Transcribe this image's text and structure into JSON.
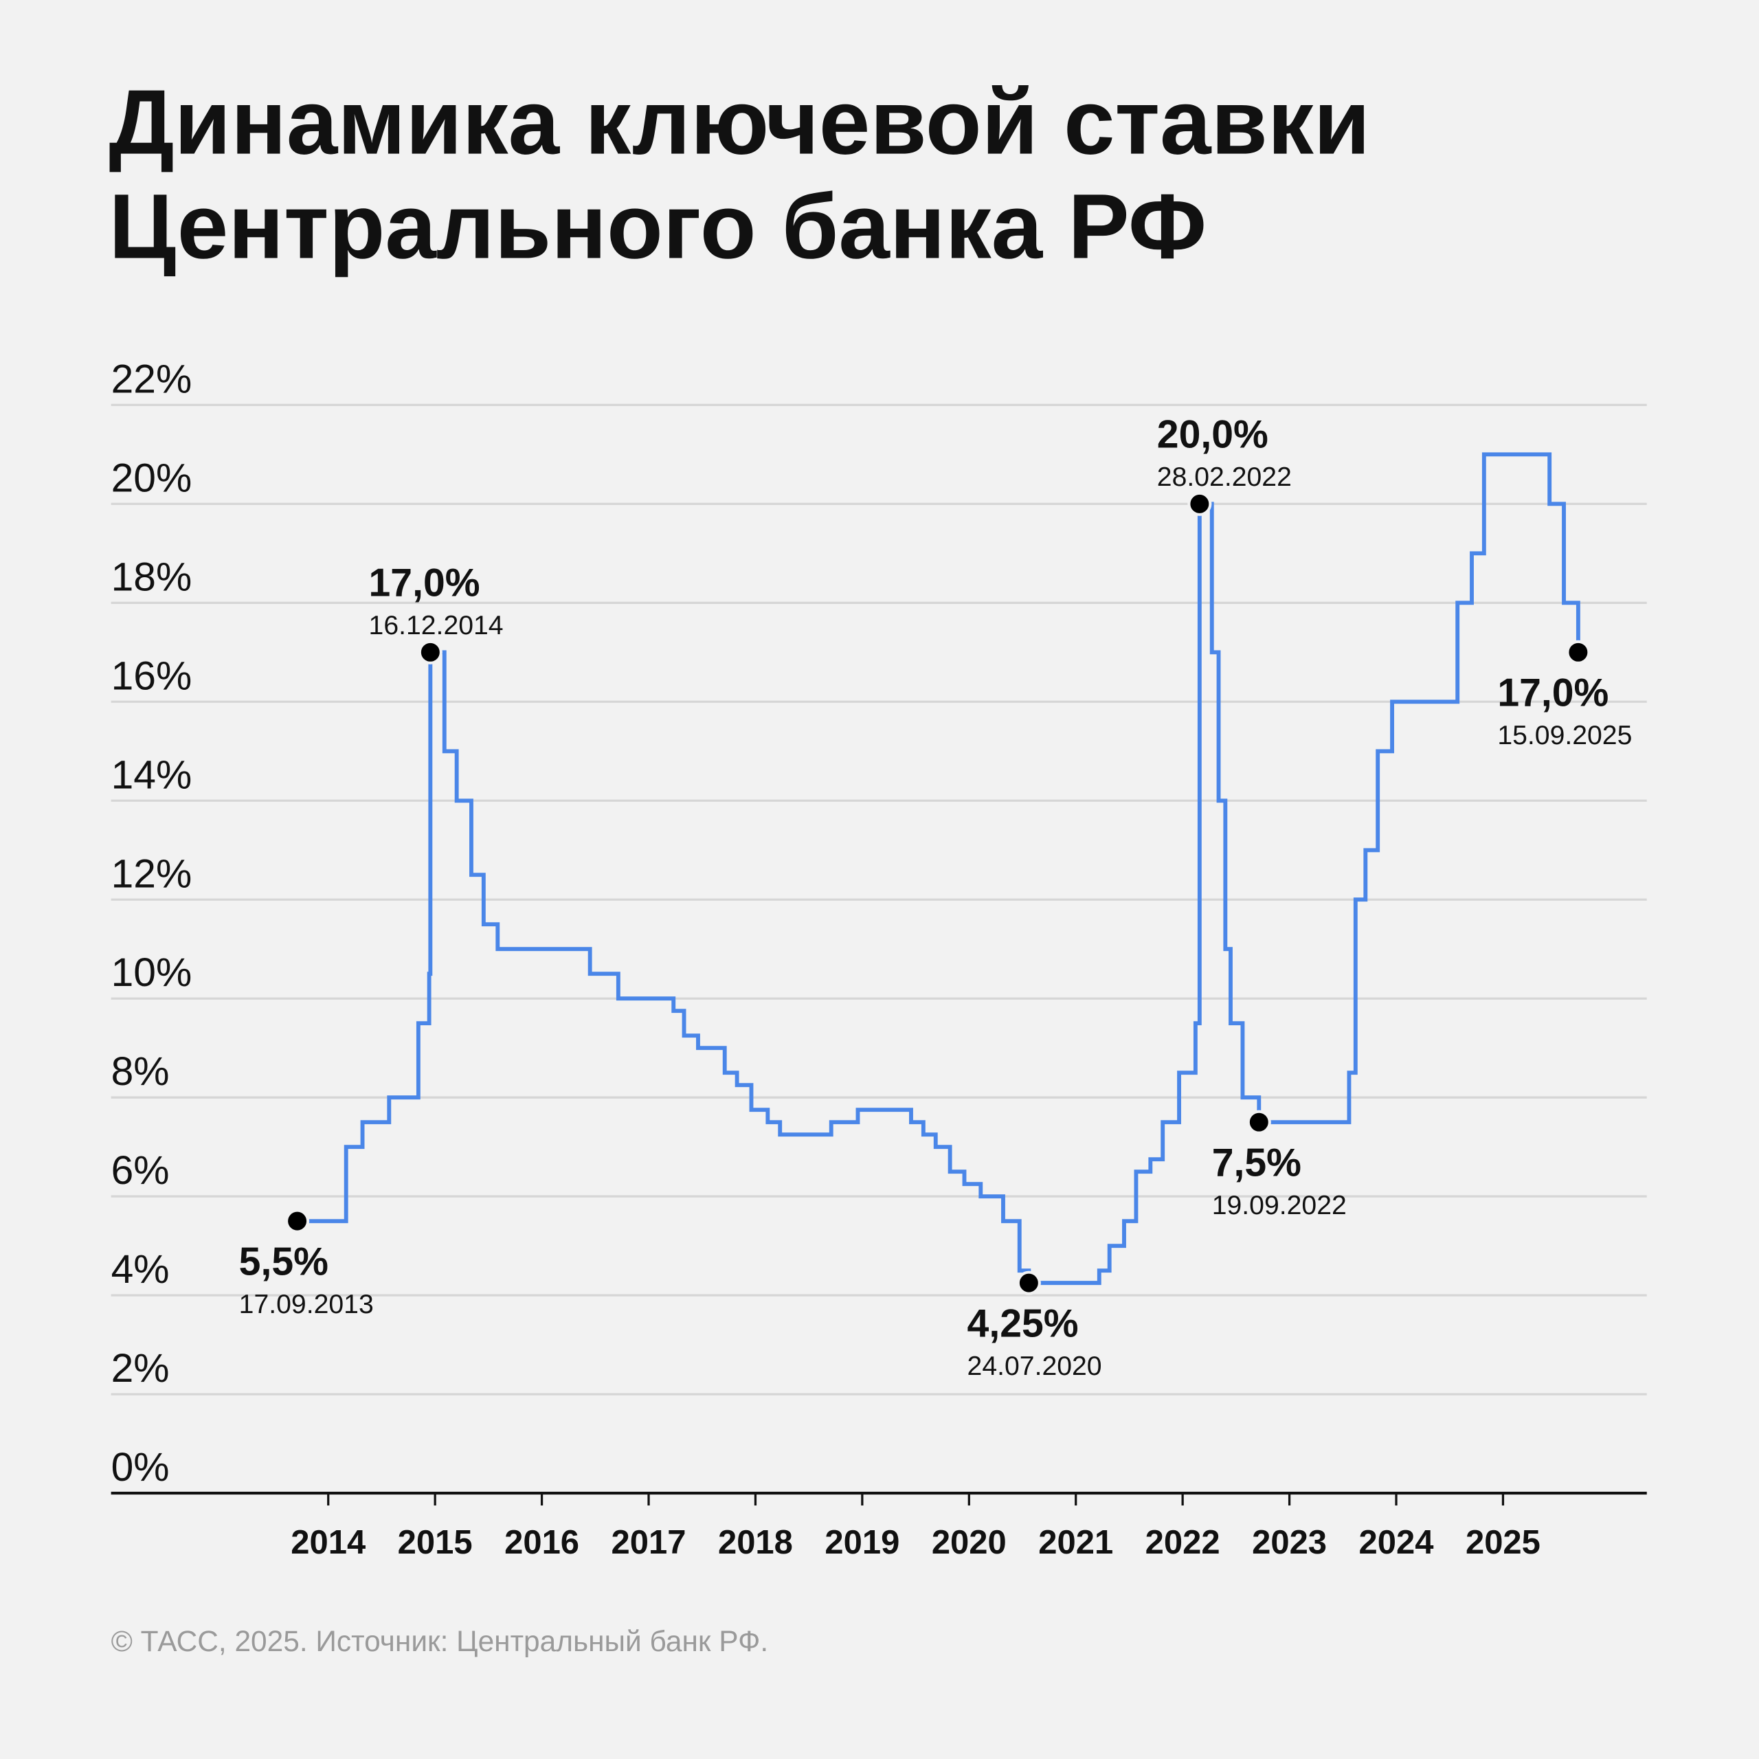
{
  "title_lines": [
    "Динамика ключевой ставки",
    "Центрального банка РФ"
  ],
  "footer": "© ТАСС, 2025. Источник: Центральный банк РФ.",
  "chart_data": {
    "type": "line",
    "step": true,
    "title": "Динамика ключевой ставки Центрального банка РФ",
    "xlabel": "",
    "ylabel": "",
    "ylim": [
      0,
      22
    ],
    "y_ticks": [
      0,
      2,
      4,
      6,
      8,
      10,
      12,
      14,
      16,
      18,
      20,
      22
    ],
    "y_tick_labels": [
      "0%",
      "2%",
      "4%",
      "6%",
      "8%",
      "10%",
      "12%",
      "14%",
      "16%",
      "18%",
      "20%",
      "22%"
    ],
    "x_ticks": [
      2014,
      2015,
      2016,
      2017,
      2018,
      2019,
      2020,
      2021,
      2022,
      2023,
      2024,
      2025
    ],
    "x_tick_labels": [
      "2014",
      "2015",
      "2016",
      "2017",
      "2018",
      "2019",
      "2020",
      "2021",
      "2022",
      "2023",
      "2024",
      "2025"
    ],
    "grid": true,
    "line_color": "#4a86e8",
    "series": [
      {
        "points": [
          [
            "2013-09-17",
            5.5
          ],
          [
            "2014-03-03",
            7.0
          ],
          [
            "2014-04-28",
            7.5
          ],
          [
            "2014-07-28",
            8.0
          ],
          [
            "2014-11-05",
            9.5
          ],
          [
            "2014-12-12",
            10.5
          ],
          [
            "2014-12-16",
            17.0
          ],
          [
            "2015-02-02",
            15.0
          ],
          [
            "2015-03-16",
            14.0
          ],
          [
            "2015-05-05",
            12.5
          ],
          [
            "2015-06-16",
            11.5
          ],
          [
            "2015-08-03",
            11.0
          ],
          [
            "2016-06-14",
            10.5
          ],
          [
            "2016-09-19",
            10.0
          ],
          [
            "2017-03-27",
            9.75
          ],
          [
            "2017-05-02",
            9.25
          ],
          [
            "2017-06-19",
            9.0
          ],
          [
            "2017-09-18",
            8.5
          ],
          [
            "2017-10-30",
            8.25
          ],
          [
            "2017-12-18",
            7.75
          ],
          [
            "2018-02-12",
            7.5
          ],
          [
            "2018-03-26",
            7.25
          ],
          [
            "2018-09-17",
            7.5
          ],
          [
            "2018-12-17",
            7.75
          ],
          [
            "2019-06-17",
            7.5
          ],
          [
            "2019-07-29",
            7.25
          ],
          [
            "2019-09-09",
            7.0
          ],
          [
            "2019-10-28",
            6.5
          ],
          [
            "2019-12-16",
            6.25
          ],
          [
            "2020-02-10",
            6.0
          ],
          [
            "2020-04-27",
            5.5
          ],
          [
            "2020-06-22",
            4.5
          ],
          [
            "2020-07-24",
            4.25
          ],
          [
            "2021-03-22",
            4.5
          ],
          [
            "2021-04-26",
            5.0
          ],
          [
            "2021-06-15",
            5.5
          ],
          [
            "2021-07-26",
            6.5
          ],
          [
            "2021-09-13",
            6.75
          ],
          [
            "2021-10-25",
            7.5
          ],
          [
            "2021-12-20",
            8.5
          ],
          [
            "2022-02-14",
            9.5
          ],
          [
            "2022-02-28",
            20.0
          ],
          [
            "2022-04-11",
            17.0
          ],
          [
            "2022-05-04",
            14.0
          ],
          [
            "2022-05-27",
            11.0
          ],
          [
            "2022-06-14",
            9.5
          ],
          [
            "2022-07-25",
            8.0
          ],
          [
            "2022-09-19",
            7.5
          ],
          [
            "2023-07-24",
            8.5
          ],
          [
            "2023-08-15",
            12.0
          ],
          [
            "2023-09-18",
            13.0
          ],
          [
            "2023-10-30",
            15.0
          ],
          [
            "2023-12-18",
            16.0
          ],
          [
            "2024-07-29",
            18.0
          ],
          [
            "2024-09-16",
            19.0
          ],
          [
            "2024-10-28",
            21.0
          ],
          [
            "2025-06-09",
            20.0
          ],
          [
            "2025-07-28",
            18.0
          ],
          [
            "2025-09-15",
            17.0
          ]
        ]
      }
    ],
    "annotations": [
      {
        "date": "2013-09-17",
        "value": 5.5,
        "value_label": "5,5%",
        "date_label": "17.09.2013",
        "placement": "below"
      },
      {
        "date": "2014-12-16",
        "value": 17.0,
        "value_label": "17,0%",
        "date_label": "16.12.2014",
        "placement": "above"
      },
      {
        "date": "2020-07-24",
        "value": 4.25,
        "value_label": "4,25%",
        "date_label": "24.07.2020",
        "placement": "below"
      },
      {
        "date": "2022-02-28",
        "value": 20.0,
        "value_label": "20,0%",
        "date_label": "28.02.2022",
        "placement": "above"
      },
      {
        "date": "2022-09-19",
        "value": 7.5,
        "value_label": "7,5%",
        "date_label": "19.09.2022",
        "placement": "below"
      },
      {
        "date": "2025-09-15",
        "value": 17.0,
        "value_label": "17,0%",
        "date_label": "15.09.2025",
        "placement": "below"
      }
    ]
  }
}
